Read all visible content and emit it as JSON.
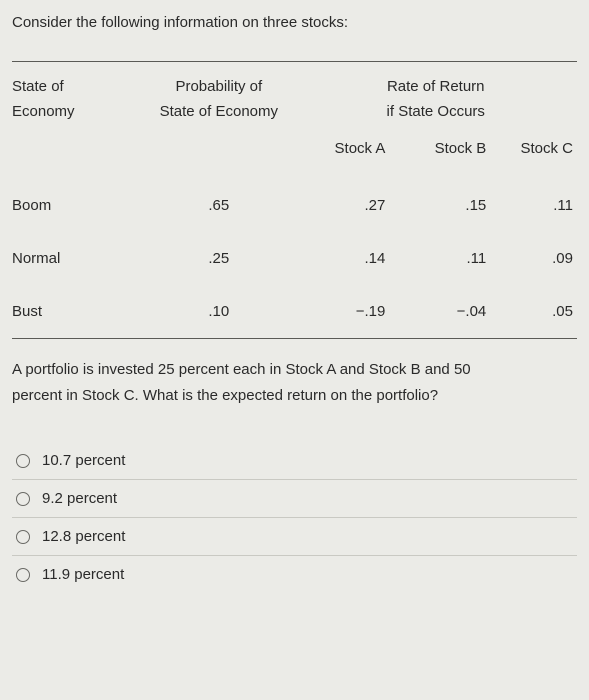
{
  "prompt": "Consider the following information on three stocks:",
  "table": {
    "header": {
      "state_line1": "State of",
      "state_line2": "Economy",
      "prob_line1": "Probability of",
      "prob_line2": "State of Economy",
      "rate_line1": "Rate of Return",
      "rate_line2": "if State Occurs",
      "stock_a": "Stock A",
      "stock_b": "Stock B",
      "stock_c": "Stock C"
    },
    "rows": [
      {
        "state": "Boom",
        "prob": ".65",
        "a": ".27",
        "b": ".15",
        "c": ".11"
      },
      {
        "state": "Normal",
        "prob": ".25",
        "a": ".14",
        "b": ".11",
        "c": ".09"
      },
      {
        "state": "Bust",
        "prob": ".10",
        "a": "−.19",
        "b": "−.04",
        "c": ".05"
      }
    ]
  },
  "question_line1": "A portfolio is invested 25 percent each in Stock A and Stock B and 50",
  "question_line2": "percent in Stock C. What is the expected return on the portfolio?",
  "options": [
    "10.7 percent",
    "9.2 percent",
    "12.8 percent",
    "11.9 percent"
  ],
  "colors": {
    "background": "#ebebe7",
    "text": "#2a2a2a",
    "rule": "#5a5a56",
    "option_divider": "#c9c9c3",
    "radio_border": "#6a6a66"
  }
}
